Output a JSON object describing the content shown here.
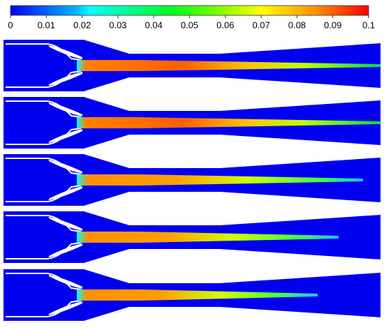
{
  "chart_data": {
    "type": "colorbar",
    "xlim": [
      0,
      0.1
    ],
    "xticks": [
      0,
      0.01,
      0.02,
      0.03,
      0.04,
      0.05,
      0.06,
      0.07,
      0.08,
      0.09,
      0.1
    ]
  }
}
